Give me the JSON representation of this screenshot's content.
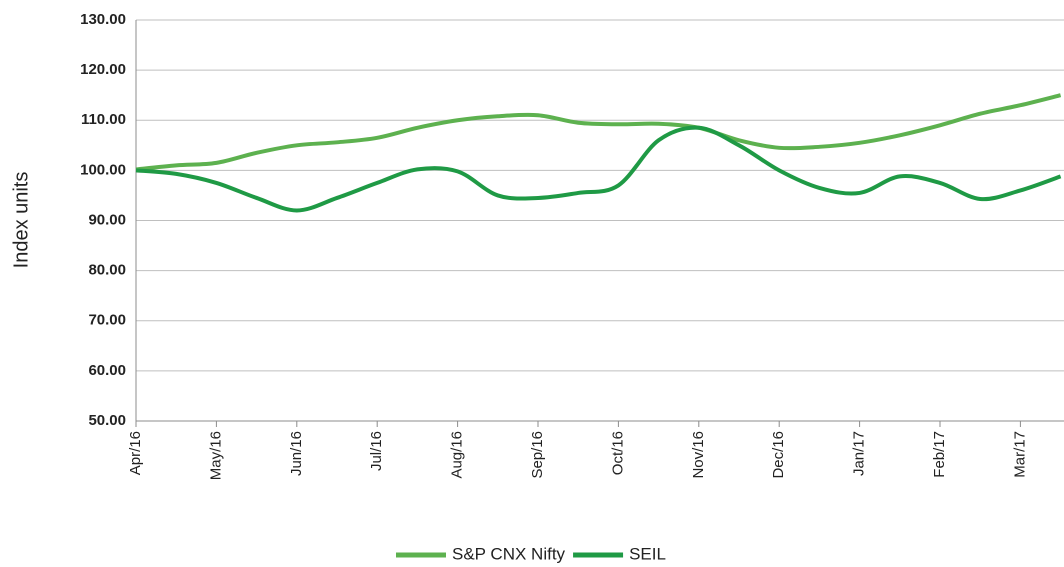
{
  "chart_data": {
    "type": "line",
    "y_label": "Index units",
    "categories": [
      "Apr/16",
      null,
      "May/16",
      null,
      "Jun/16",
      null,
      "Jul/16",
      null,
      "Aug/16",
      null,
      "Sep/16",
      null,
      "Oct/16",
      null,
      "Nov/16",
      null,
      "Dec/16",
      null,
      "Jan/17",
      null,
      "Feb/17",
      null,
      "Mar/17",
      null
    ],
    "series": [
      {
        "name": "S&P CNX Nifty",
        "color": "#5db14f",
        "values": [
          100.2,
          101,
          101.5,
          103.5,
          105,
          105.6,
          106.5,
          108.5,
          110,
          110.8,
          111,
          109.5,
          109.2,
          109.3,
          108.5,
          106,
          104.5,
          104.7,
          105.5,
          107,
          109,
          111.3,
          113,
          115
        ]
      },
      {
        "name": "SEIL",
        "color": "#1f9a45",
        "values": [
          100,
          99.3,
          97.5,
          94.5,
          92,
          94.5,
          97.5,
          100.2,
          99.8,
          95,
          94.5,
          95.5,
          97,
          106,
          108.5,
          105,
          100,
          96.5,
          95.5,
          98.8,
          97.5,
          94.3,
          96,
          98.8
        ]
      }
    ],
    "ylim": [
      50,
      130
    ],
    "yticks": [
      {
        "value": 50,
        "label": "50.00"
      },
      {
        "value": 60,
        "label": "60.00"
      },
      {
        "value": 70,
        "label": "70.00"
      },
      {
        "value": 80,
        "label": "80.00"
      },
      {
        "value": 90,
        "label": "90.00"
      },
      {
        "value": 100,
        "label": "100.00"
      },
      {
        "value": 110,
        "label": "110.00"
      },
      {
        "value": 120,
        "label": "120.00"
      },
      {
        "value": 130,
        "label": "130.00"
      }
    ],
    "grid": true,
    "legend": "bottom"
  }
}
